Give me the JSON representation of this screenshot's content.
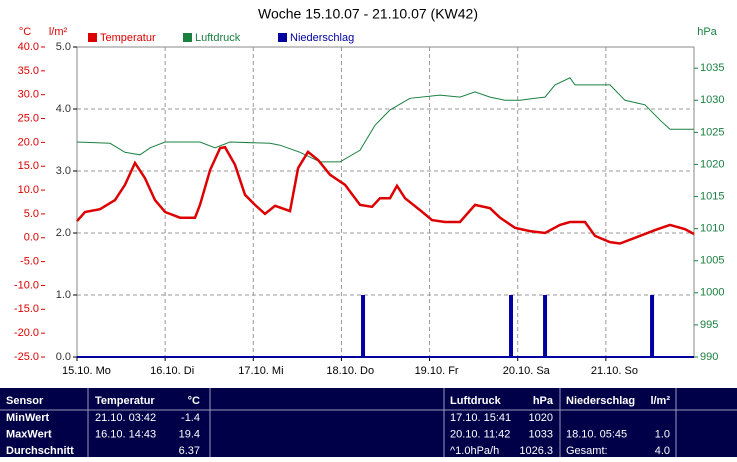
{
  "chart_data": {
    "type": "line",
    "title": "Woche 15.10.07 - 21.10.07 (KW42)",
    "y_label": "°C",
    "y3_label": "l/m²",
    "y2_label": "hPa",
    "xlim": [
      0,
      7
    ],
    "xticks": [
      {
        "value": 0,
        "label": "15.10. Mo"
      },
      {
        "value": 1,
        "label": "16.10. Di"
      },
      {
        "value": 2,
        "label": "17.10. Mi"
      },
      {
        "value": 3,
        "label": "18.10. Do"
      },
      {
        "value": 4,
        "label": "19.10. Fr"
      },
      {
        "value": 5,
        "label": "20.10. Sa"
      },
      {
        "value": 6,
        "label": "21.10. So"
      }
    ],
    "ylim": [
      -25,
      40
    ],
    "yticks": [
      {
        "value": -25,
        "label": "-25.0"
      },
      {
        "value": -20,
        "label": "-20.0"
      },
      {
        "value": -15,
        "label": "-15.0"
      },
      {
        "value": -10,
        "label": "-10.0"
      },
      {
        "value": -5,
        "label": "-5.0"
      },
      {
        "value": 0,
        "label": "0.0"
      },
      {
        "value": 5,
        "label": "5.0"
      },
      {
        "value": 10,
        "label": "10.0"
      },
      {
        "value": 15,
        "label": "15.0"
      },
      {
        "value": 20,
        "label": "20.0"
      },
      {
        "value": 25,
        "label": "25.0"
      },
      {
        "value": 30,
        "label": "30.0"
      },
      {
        "value": 35,
        "label": "35.0"
      },
      {
        "value": 40,
        "label": "40.0"
      }
    ],
    "y3lim": [
      0,
      5
    ],
    "y3ticks": [
      {
        "value": 0,
        "label": "0.0"
      },
      {
        "value": 1,
        "label": "1.0"
      },
      {
        "value": 2,
        "label": "2.0"
      },
      {
        "value": 3,
        "label": "3.0"
      },
      {
        "value": 4,
        "label": "4.0"
      },
      {
        "value": 5,
        "label": "5.0"
      }
    ],
    "y2lim": [
      990,
      1038.3
    ],
    "y2ticks": [
      990,
      995,
      1000,
      1005,
      1010,
      1015,
      1020,
      1025,
      1030,
      1035
    ],
    "grid": true,
    "series": [
      {
        "name": "Temperatur",
        "color": "#dd0000",
        "type": "line",
        "axis": "y",
        "x": [
          0,
          0.091,
          0.261,
          0.431,
          0.545,
          0.658,
          0.772,
          0.885,
          0.999,
          1.169,
          1.339,
          1.396,
          1.51,
          1.623,
          1.679,
          1.793,
          1.906,
          2.02,
          2.133,
          2.247,
          2.417,
          2.508,
          2.621,
          2.735,
          2.871,
          3.041,
          3.211,
          3.347,
          3.438,
          3.551,
          3.63,
          3.721,
          3.891,
          4.027,
          4.175,
          4.345,
          4.515,
          4.686,
          4.799,
          4.969,
          5.139,
          5.309,
          5.48,
          5.593,
          5.763,
          5.877,
          6.047,
          6.16,
          6.331,
          6.558,
          6.728,
          6.898,
          7.0
        ],
        "values": [
          3.5,
          5.4,
          6.0,
          7.9,
          11.1,
          15.7,
          12.5,
          7.9,
          5.4,
          4.2,
          4.2,
          6.9,
          14.2,
          18.8,
          19.0,
          15.3,
          9.0,
          6.9,
          5.0,
          6.7,
          5.6,
          14.6,
          18.0,
          16.3,
          13.2,
          11.1,
          6.9,
          6.5,
          8.3,
          8.3,
          10.9,
          8.3,
          5.8,
          3.7,
          3.3,
          3.3,
          6.9,
          6.2,
          4.2,
          2.1,
          1.4,
          1.0,
          2.7,
          3.3,
          3.3,
          0.4,
          -0.9,
          -1.2,
          0,
          1.6,
          2.7,
          1.8,
          0.8
        ]
      },
      {
        "name": "Luftdruck",
        "color": "#1a8040",
        "type": "line",
        "axis": "y2",
        "x": [
          0,
          0.374,
          0.545,
          0.715,
          0.829,
          0.999,
          1.396,
          1.566,
          1.736,
          2.19,
          2.303,
          2.53,
          2.757,
          2.984,
          3.211,
          3.381,
          3.551,
          3.778,
          4.118,
          4.345,
          4.515,
          4.686,
          4.856,
          5.026,
          5.196,
          5.309,
          5.423,
          5.593,
          5.65,
          6.047,
          6.217,
          6.444,
          6.615,
          6.728,
          7.0
        ],
        "values": [
          1023.5,
          1023.3,
          1021.9,
          1021.5,
          1022.6,
          1023.5,
          1023.5,
          1022.6,
          1023.5,
          1023.3,
          1023.0,
          1021.9,
          1020.4,
          1020.4,
          1022.2,
          1026.1,
          1028.5,
          1030.3,
          1030.8,
          1030.5,
          1031.3,
          1030.5,
          1030.0,
          1030.0,
          1030.3,
          1030.5,
          1032.4,
          1033.5,
          1032.4,
          1032.4,
          1030.0,
          1029.3,
          1026.9,
          1025.5,
          1025.5
        ]
      },
      {
        "name": "Niederschlag",
        "color": "#0000a0",
        "type": "bar",
        "axis": "y3",
        "x": [
          3.245,
          4.924,
          5.31,
          6.524
        ],
        "values": [
          1.0,
          1.0,
          1.0,
          1.0
        ]
      }
    ]
  },
  "table": {
    "header": {
      "sensor": "Sensor",
      "temp": "Temperatur",
      "temp_unit": "°C",
      "pressure": "Luftdruck",
      "pressure_unit": "hPa",
      "rain": "Niederschlag",
      "rain_unit": "l/m²"
    },
    "rows": [
      {
        "label": "MinWert",
        "temp_time": "21.10.  03:42",
        "temp": "-1.4",
        "pressure_time": "17.10.  15:41",
        "pressure": "1020"
      },
      {
        "label": "MaxWert",
        "temp_time": "16.10.  14:43",
        "temp": "19.4",
        "pressure_time": "20.10.  11:42",
        "pressure": "1033",
        "rain_time": "18.10.  05:45",
        "rain": "1.0"
      },
      {
        "label": "Durchschnitt",
        "temp": "6.37",
        "pressure_time": "^1.0hPa/h",
        "pressure": "1026.3",
        "rain_time": "Gesamt:",
        "rain": "4.0"
      }
    ]
  }
}
